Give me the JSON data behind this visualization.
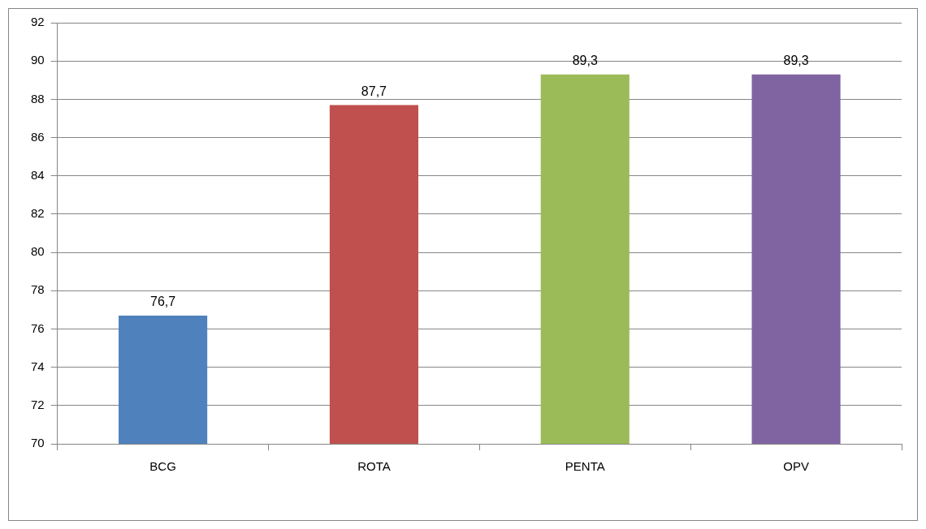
{
  "chart_data": {
    "type": "bar",
    "categories": [
      "BCG",
      "ROTA",
      "PENTA",
      "OPV"
    ],
    "values": [
      76.7,
      87.7,
      89.3,
      89.3
    ],
    "colors": [
      "#4f81bd",
      "#c0504d",
      "#9bbb59",
      "#8064a2"
    ],
    "value_labels": [
      "76,7",
      "87,7",
      "89,3",
      "89,3"
    ],
    "ylim": [
      70,
      92
    ],
    "yticks": [
      70,
      72,
      74,
      76,
      78,
      80,
      82,
      84,
      86,
      88,
      90,
      92
    ],
    "grid": "y",
    "legend": false
  }
}
